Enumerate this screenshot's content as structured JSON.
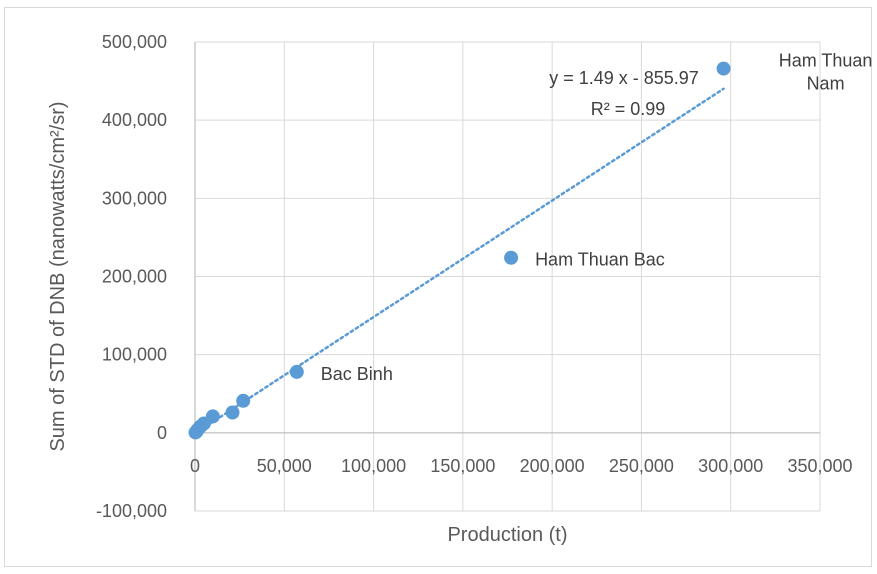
{
  "chart_data": {
    "type": "scatter",
    "title": "",
    "xlabel": "Production (t)",
    "ylabel": "Sum of STD of DNB (nanowatts/cm²/sr)",
    "xlim": [
      0,
      350000
    ],
    "ylim": [
      -100000,
      500000
    ],
    "x_ticks": [
      0,
      50000,
      100000,
      150000,
      200000,
      250000,
      300000,
      350000
    ],
    "y_ticks": [
      -100000,
      0,
      100000,
      200000,
      300000,
      400000,
      500000
    ],
    "x_tick_labels": [
      "0",
      "50,000",
      "100,000",
      "150,000",
      "200,000",
      "250,000",
      "300,000",
      "350,000"
    ],
    "y_tick_labels": [
      "-100,000",
      "0",
      "100,000",
      "200,000",
      "300,000",
      "400,000",
      "500,000"
    ],
    "grid": "major",
    "legend": "none",
    "marker_color": "#5b9bd5",
    "trendline_color": "#5b9bd5",
    "series": [
      {
        "points": [
          {
            "x": 300,
            "y": 500
          },
          {
            "x": 800,
            "y": 1500
          },
          {
            "x": 1500,
            "y": 4000
          },
          {
            "x": 3000,
            "y": 8000
          },
          {
            "x": 5000,
            "y": 12000
          },
          {
            "x": 10000,
            "y": 21000
          },
          {
            "x": 21000,
            "y": 26000
          },
          {
            "x": 27000,
            "y": 41000
          },
          {
            "x": 57000,
            "y": 78000
          },
          {
            "x": 177000,
            "y": 224000
          },
          {
            "x": 296000,
            "y": 466000
          }
        ]
      }
    ],
    "trendline": {
      "slope": 1.49,
      "intercept": -855.97,
      "x_from": 0,
      "x_to": 296000
    },
    "point_labels": [
      {
        "text_lines": [
          "Bac Binh"
        ],
        "x": 57000,
        "y": 78000
      },
      {
        "text_lines": [
          "Ham Thuan Bac"
        ],
        "x": 177000,
        "y": 224000
      },
      {
        "text_lines": [
          "Ham Thuan",
          "Nam"
        ],
        "x": 296000,
        "y": 466000
      }
    ],
    "equation_lines": [
      "y = 1.49 x - 855.97",
      "R² = 0.99"
    ]
  }
}
